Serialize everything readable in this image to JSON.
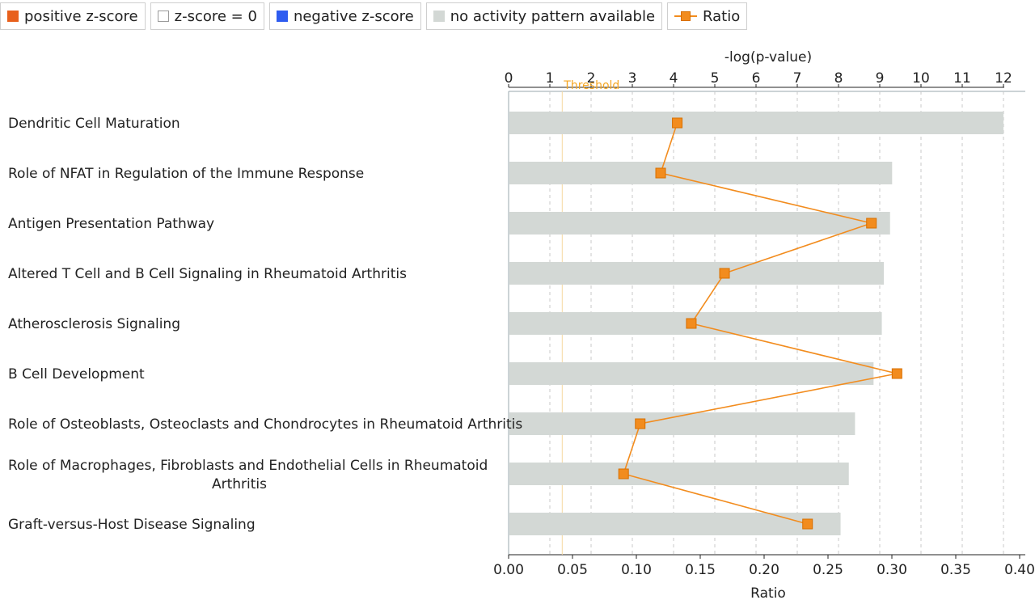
{
  "legend": {
    "items": [
      {
        "label": "positive z-score",
        "color": "#e8601c",
        "kind": "swatch"
      },
      {
        "label": "z-score = 0",
        "color": "#ffffff",
        "kind": "swatch-outline"
      },
      {
        "label": "negative z-score",
        "color": "#2e5cf0",
        "kind": "swatch"
      },
      {
        "label": "no activity pattern available",
        "color": "#d3d8d5",
        "kind": "swatch"
      },
      {
        "label": "Ratio",
        "color": "#f28c1e",
        "kind": "line-marker"
      }
    ]
  },
  "chart_data": {
    "type": "bar",
    "orientation": "horizontal",
    "categories": [
      "Dendritic Cell Maturation",
      "Role of NFAT in Regulation of the Immune Response",
      "Antigen Presentation Pathway",
      "Altered T Cell and B Cell Signaling in Rheumatoid Arthritis",
      "Atherosclerosis Signaling",
      "B Cell Development",
      "Role of Osteoblasts, Osteoclasts and Chondrocytes in Rheumatoid Arthritis",
      "Role of Macrophages, Fibroblasts and Endothelial Cells in Rheumatoid Arthritis",
      "Graft-versus-Host Disease Signaling"
    ],
    "category_lines": [
      [
        "Dendritic Cell Maturation"
      ],
      [
        "Role of NFAT in Regulation of the Immune Response"
      ],
      [
        "Antigen Presentation Pathway"
      ],
      [
        "Altered T Cell and B Cell Signaling in Rheumatoid Arthritis"
      ],
      [
        "Atherosclerosis Signaling"
      ],
      [
        "B Cell Development"
      ],
      [
        "Role of Osteoblasts, Osteoclasts and Chondrocytes in Rheumatoid Arthritis"
      ],
      [
        "Role of Macrophages, Fibroblasts and Endothelial Cells in Rheumatoid",
        "Arthritis"
      ],
      [
        "Graft-versus-Host Disease Signaling"
      ]
    ],
    "series": [
      {
        "name": "-log(p-value)",
        "values": [
          12.0,
          9.3,
          9.25,
          9.1,
          9.05,
          8.85,
          8.4,
          8.25,
          8.05
        ],
        "color": "#d3d8d5"
      },
      {
        "name": "Ratio",
        "values": [
          0.132,
          0.119,
          0.284,
          0.169,
          0.143,
          0.304,
          0.103,
          0.09,
          0.234
        ],
        "color": "#f28c1e"
      }
    ],
    "top_axis": {
      "label": "-log(p-value)",
      "min": 0,
      "max": 12,
      "ticks": [
        "0",
        "1",
        "2",
        "3",
        "4",
        "5",
        "6",
        "7",
        "8",
        "9",
        "10",
        "11",
        "12"
      ]
    },
    "bottom_axis": {
      "label": "Ratio",
      "min": 0,
      "max": 0.4,
      "ticks": [
        "0.00",
        "0.05",
        "0.10",
        "0.15",
        "0.20",
        "0.25",
        "0.30",
        "0.35",
        "0.40"
      ]
    },
    "threshold": {
      "label": "Threshold",
      "value": 1.3,
      "color": "#f5a623"
    },
    "grid": true
  }
}
